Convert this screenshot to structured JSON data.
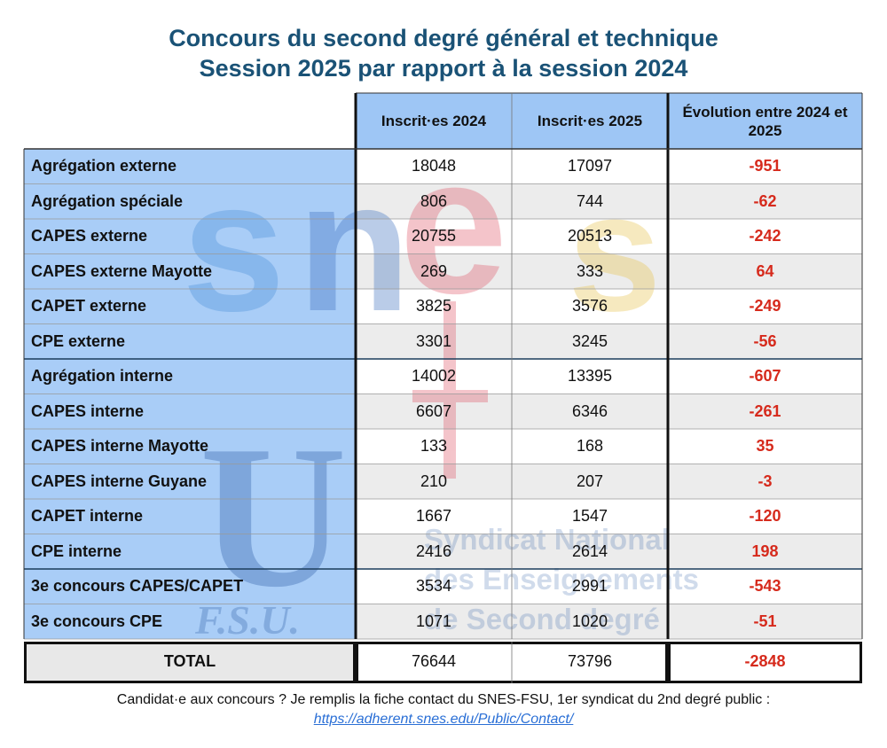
{
  "title": {
    "line1": "Concours du second degré général et technique",
    "line2": "Session 2025 par rapport à la session 2024"
  },
  "columns": [
    "Inscrit·es 2024",
    "Inscrit·es 2025",
    "Évolution entre 2024 et 2025"
  ],
  "rows": [
    {
      "label": "Agrégation externe",
      "y2024": "18048",
      "y2025": "17097",
      "evolution": "-951"
    },
    {
      "label": "Agrégation spéciale",
      "y2024": "806",
      "y2025": "744",
      "evolution": "-62"
    },
    {
      "label": "CAPES externe",
      "y2024": "20755",
      "y2025": "20513",
      "evolution": "-242"
    },
    {
      "label": "CAPES externe Mayotte",
      "y2024": "269",
      "y2025": "333",
      "evolution": "64"
    },
    {
      "label": "CAPET externe",
      "y2024": "3825",
      "y2025": "3576",
      "evolution": "-249"
    },
    {
      "label": "CPE externe",
      "y2024": "3301",
      "y2025": "3245",
      "evolution": "-56"
    },
    {
      "label": "Agrégation interne",
      "y2024": "14002",
      "y2025": "13395",
      "evolution": "-607"
    },
    {
      "label": "CAPES interne",
      "y2024": "6607",
      "y2025": "6346",
      "evolution": "-261"
    },
    {
      "label": "CAPES interne Mayotte",
      "y2024": "133",
      "y2025": "168",
      "evolution": "35"
    },
    {
      "label": "CAPES interne Guyane",
      "y2024": "210",
      "y2025": "207",
      "evolution": "-3"
    },
    {
      "label": "CAPET interne",
      "y2024": "1667",
      "y2025": "1547",
      "evolution": "-120"
    },
    {
      "label": "CPE interne",
      "y2024": "2416",
      "y2025": "2614",
      "evolution": "198"
    },
    {
      "label": "3e concours CAPES/CAPET",
      "y2024": "3534",
      "y2025": "2991",
      "evolution": "-543"
    },
    {
      "label": "3e concours CPE",
      "y2024": "1071",
      "y2025": "1020",
      "evolution": "-51"
    }
  ],
  "total": {
    "label": "TOTAL",
    "y2024": "76644",
    "y2025": "73796",
    "evolution": "-2848"
  },
  "watermark": {
    "logo_text": "snes",
    "org_lines": [
      "Syndicat National",
      "des Enseignements",
      "de Second degré"
    ],
    "fsu_text": "F.S.U."
  },
  "footer": {
    "text": "Candidat·e aux concours  ? Je remplis la fiche contact du SNES-FSU, 1er syndicat du 2nd degré public :",
    "link": "https://adherent.snes.edu/Public/Contact/"
  },
  "colors": {
    "title": "#1a5276",
    "header_bg": "#9ec6f5",
    "label_bg": "#a9cdf7",
    "negative": "#d62a1c",
    "stripe": "#ececec",
    "link": "#2a6fd6"
  }
}
